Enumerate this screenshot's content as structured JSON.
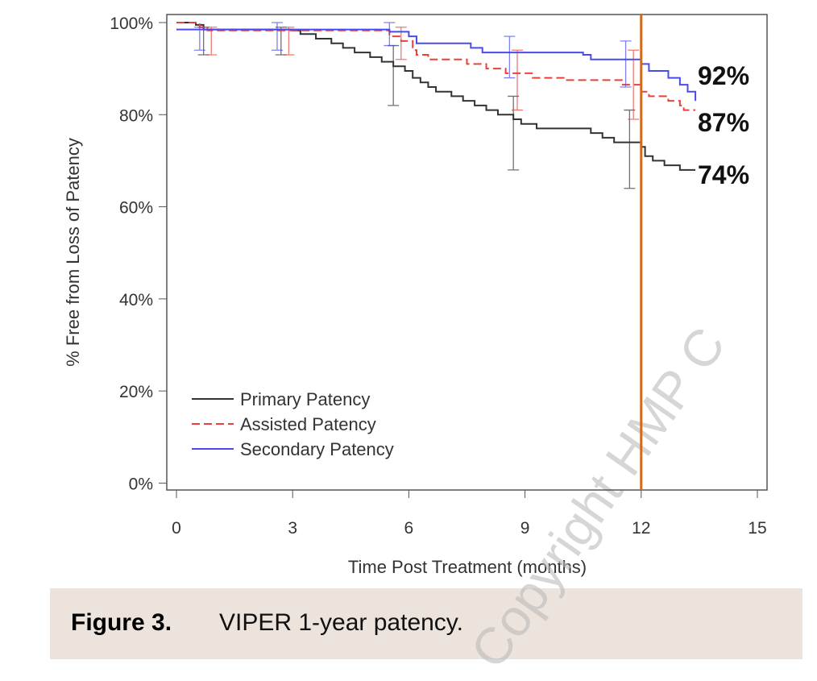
{
  "chart_data": {
    "type": "step",
    "xlabel": "Time Post Treatment (months)",
    "ylabel": "% Free from Loss of Patency",
    "xlim": [
      -0.25,
      15.25
    ],
    "ylim": [
      -1.5,
      101.75
    ],
    "xticks": [
      0,
      3,
      6,
      9,
      12,
      15
    ],
    "yticks": [
      {
        "value": 0,
        "label": "0%"
      },
      {
        "value": 20,
        "label": "20%"
      },
      {
        "value": 40,
        "label": "40%"
      },
      {
        "value": 60,
        "label": "60%"
      },
      {
        "value": 80,
        "label": "80%"
      },
      {
        "value": 100,
        "label": "100%"
      }
    ],
    "legend": "lower left",
    "reference_line": {
      "x": 12,
      "color": "#d2691e"
    },
    "series": [
      {
        "name": "Primary Patency",
        "color": "#333333",
        "dash": false,
        "end_label": "74%",
        "x": [
          0,
          0.5,
          0.7,
          3,
          3.2,
          3.6,
          4,
          4.3,
          4.6,
          5,
          5.3,
          5.6,
          5.9,
          6.1,
          6.3,
          6.5,
          6.7,
          7.1,
          7.4,
          7.7,
          8,
          8.3,
          8.7,
          8.9,
          9.3,
          10.7,
          11,
          11.3,
          12,
          12.1,
          12.3,
          12.6,
          13,
          13.4
        ],
        "values": [
          100,
          99.5,
          98.5,
          98.3,
          97.5,
          96.5,
          95.5,
          94.5,
          93.5,
          92.5,
          91.5,
          90.5,
          89.5,
          88,
          87,
          86,
          85,
          84,
          83,
          82,
          81,
          80,
          79,
          78,
          77,
          76,
          75,
          74,
          73,
          71,
          70,
          69,
          68,
          68
        ],
        "errorbars": [
          {
            "x": 0.7,
            "low": 93,
            "high": 99
          },
          {
            "x": 2.7,
            "low": 93,
            "high": 99
          },
          {
            "x": 5.6,
            "low": 82,
            "high": 95
          },
          {
            "x": 8.7,
            "low": 68,
            "high": 84
          },
          {
            "x": 11.7,
            "low": 64,
            "high": 81
          }
        ]
      },
      {
        "name": "Assisted Patency",
        "color": "#e8413b",
        "dash": true,
        "end_label": "87%",
        "x": [
          0,
          0.6,
          0.8,
          4,
          5.5,
          5.8,
          6.1,
          6.2,
          6.5,
          7.5,
          8,
          8.5,
          9.2,
          10,
          11.5,
          12,
          12.2,
          12.7,
          13,
          13.1,
          13.4
        ],
        "values": [
          100,
          99,
          98.3,
          98.3,
          97,
          96,
          94,
          93,
          92,
          91,
          90,
          89,
          88,
          87.5,
          86.5,
          85,
          84,
          83,
          82,
          81,
          81
        ],
        "errorbars": [
          {
            "x": 0.9,
            "low": 93,
            "high": 99
          },
          {
            "x": 2.9,
            "low": 93,
            "high": 99
          },
          {
            "x": 5.8,
            "low": 92,
            "high": 99
          },
          {
            "x": 8.8,
            "low": 81,
            "high": 94
          },
          {
            "x": 11.8,
            "low": 79,
            "high": 94
          }
        ]
      },
      {
        "name": "Secondary Patency",
        "color": "#4a4aef",
        "dash": false,
        "end_label": "92%",
        "x": [
          0,
          5.5,
          6,
          6.2,
          7.6,
          7.9,
          10.5,
          10.7,
          12,
          12.2,
          12.7,
          13,
          13.2,
          13.4
        ],
        "values": [
          98.5,
          98,
          97,
          95.5,
          94.5,
          93.5,
          93,
          92,
          91,
          89.5,
          88,
          86.5,
          85,
          83
        ],
        "errorbars": [
          {
            "x": 0.6,
            "low": 94,
            "high": 99
          },
          {
            "x": 2.6,
            "low": 94,
            "high": 100
          },
          {
            "x": 5.5,
            "low": 95,
            "high": 100
          },
          {
            "x": 8.6,
            "low": 88,
            "high": 97
          },
          {
            "x": 11.6,
            "low": 86,
            "high": 96
          }
        ]
      }
    ]
  },
  "caption": {
    "label": "Figure 3.",
    "text": "VIPER 1-year patency."
  },
  "watermark": "Copyright HMP C"
}
